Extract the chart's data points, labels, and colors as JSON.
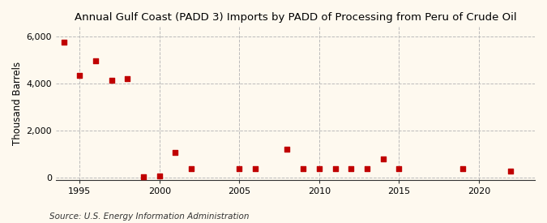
{
  "title": "Annual Gulf Coast (PADD 3) Imports by PADD of Processing from Peru of Crude Oil",
  "ylabel": "Thousand Barrels",
  "source": "Source: U.S. Energy Information Administration",
  "background_color": "#fef9ef",
  "marker_color": "#c00000",
  "data": {
    "1994": 5750,
    "1995": 4350,
    "1996": 4950,
    "1997": 4150,
    "1998": 4200,
    "1999": 30,
    "2000": 55,
    "2001": 1050,
    "2002": 380,
    "2005": 380,
    "2006": 380,
    "2008": 1200,
    "2009": 380,
    "2010": 380,
    "2011": 380,
    "2012": 380,
    "2013": 380,
    "2014": 800,
    "2015": 380,
    "2019": 380,
    "2022": 280
  },
  "xlim": [
    1993.5,
    2023.5
  ],
  "ylim": [
    -100,
    6400
  ],
  "yticks": [
    0,
    2000,
    4000,
    6000
  ],
  "xticks": [
    1995,
    2000,
    2005,
    2010,
    2015,
    2020
  ],
  "title_fontsize": 9.5,
  "label_fontsize": 8.5,
  "tick_fontsize": 8,
  "source_fontsize": 7.5
}
